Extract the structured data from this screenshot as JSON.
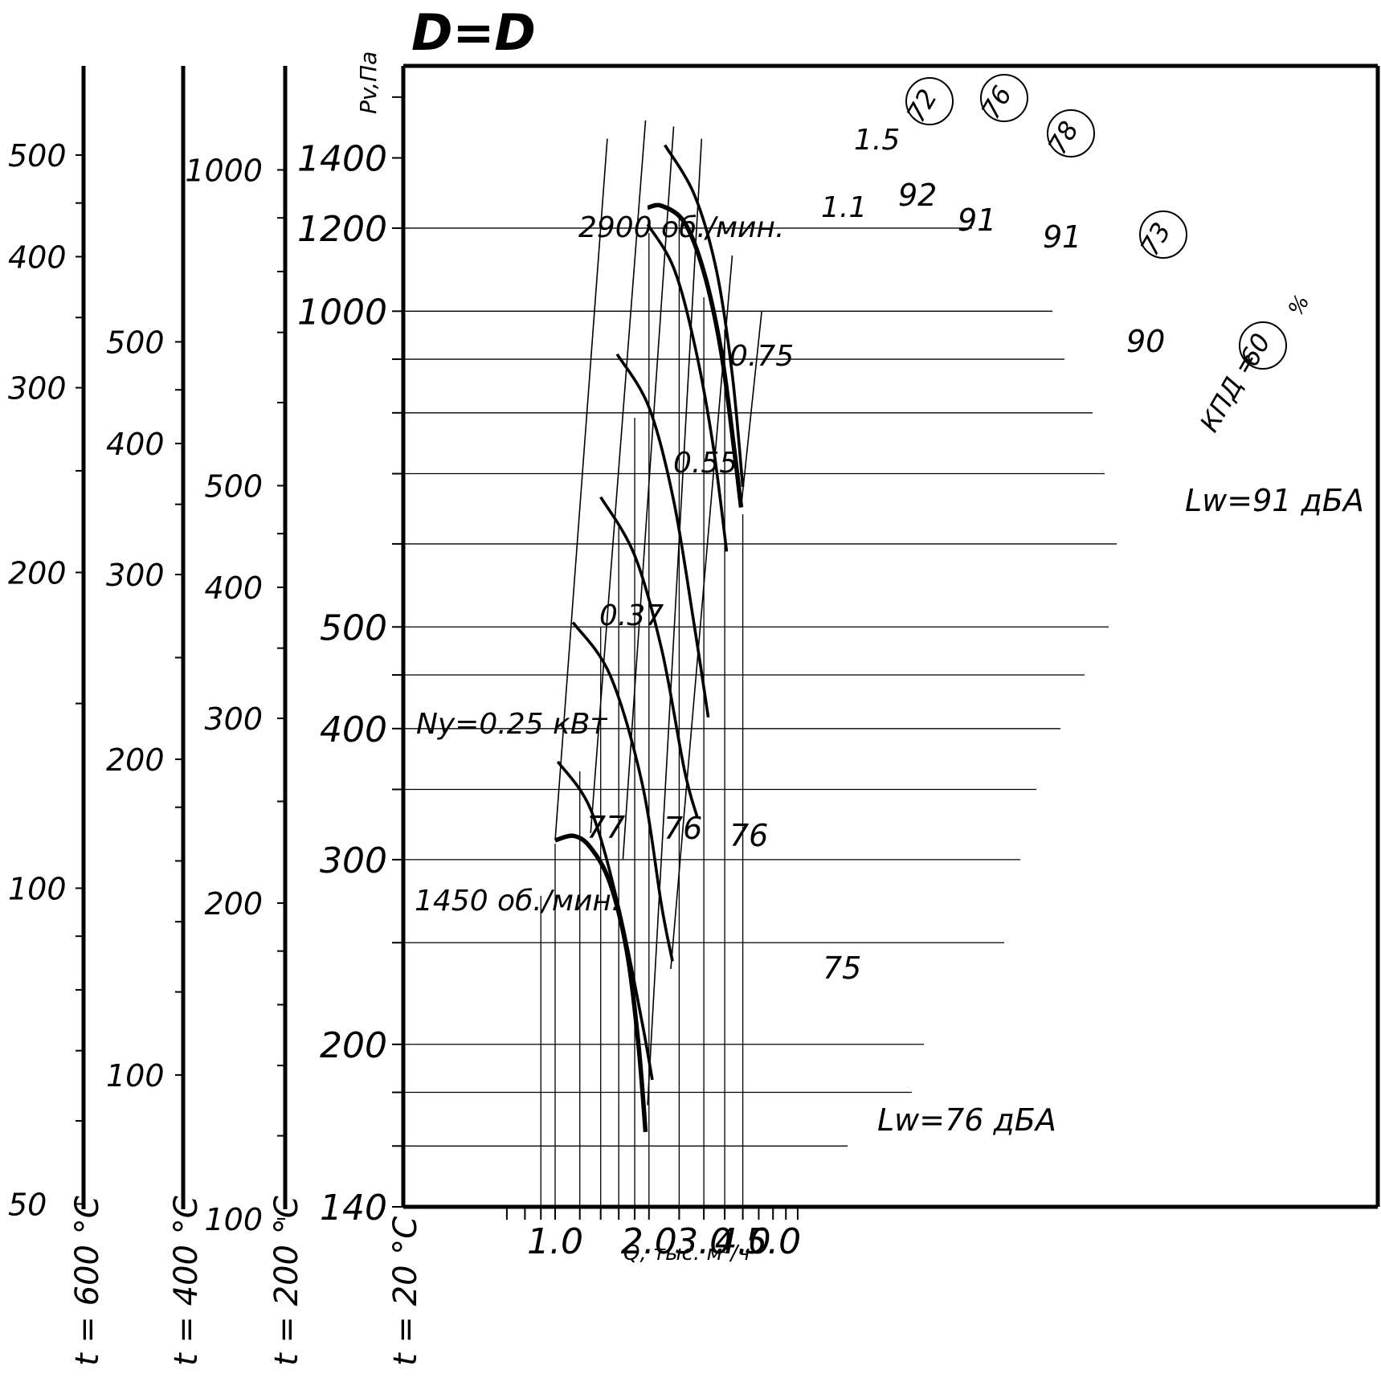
{
  "title": "D=D",
  "chart_data": {
    "type": "line",
    "x_scale": "log",
    "y_scale": "log",
    "xlabel": "Q, тыс. м³/ч",
    "ylabel": "Pv,Па",
    "xlim": [
      0.6,
      6.2
    ],
    "ylim": [
      140,
      1700
    ],
    "x_ticks": [
      "1.0",
      "2.0",
      "3.0",
      "4.0",
      "5.0"
    ],
    "y_ticks": [
      "140",
      "200",
      "300",
      "400",
      "500",
      "1000",
      "1200",
      "1400"
    ],
    "temperature_scales": [
      {
        "label": "t = 600 °C",
        "ticks": [
          "50",
          "100",
          "200",
          "300",
          "400",
          "500"
        ]
      },
      {
        "label": "t = 400 °C",
        "ticks": [
          "100",
          "200",
          "300",
          "400",
          "500"
        ]
      },
      {
        "label": "t = 200 °C",
        "ticks": [
          "100",
          "200",
          "300",
          "400",
          "500",
          "1000"
        ]
      },
      {
        "label": "t = 20 °C"
      }
    ],
    "series": [
      {
        "name": "2900 об./мин.",
        "Lw_label": "Lw=91 дБА",
        "x": [
          1.98,
          2.2,
          2.6,
          3.0,
          3.4,
          3.75,
          3.95
        ],
        "y": [
          1255,
          1260,
          1215,
          1090,
          920,
          740,
          650
        ]
      },
      {
        "name": "1450 об./мин.",
        "Lw_label": "Lw=76 дБА",
        "x": [
          1.0,
          1.15,
          1.3,
          1.5,
          1.7,
          1.85,
          1.95
        ],
        "y": [
          313,
          316,
          308,
          285,
          245,
          200,
          165
        ]
      }
    ],
    "power_lines": [
      {
        "label": "1.5",
        "x": [
          2.25,
          2.8,
          3.3,
          3.7,
          4.0
        ],
        "y": [
          1440,
          1290,
          1090,
          870,
          680
        ]
      },
      {
        "label": "1.1",
        "x": [
          1.98,
          2.4,
          2.8,
          3.2,
          3.55
        ],
        "y": [
          1210,
          1100,
          930,
          750,
          590
        ]
      },
      {
        "label": "0.75",
        "x": [
          1.58,
          2.0,
          2.4,
          2.8,
          3.1
        ],
        "y": [
          910,
          810,
          660,
          500,
          410
        ]
      },
      {
        "label": "0.55",
        "x": [
          1.4,
          1.8,
          2.2,
          2.6,
          2.85
        ],
        "y": [
          665,
          585,
          475,
          365,
          330
        ]
      },
      {
        "label": "0.37",
        "x": [
          1.14,
          1.5,
          1.9,
          2.2,
          2.38
        ],
        "y": [
          505,
          450,
          355,
          270,
          240
        ]
      },
      {
        "label": "Ny=0.25 кВт",
        "x": [
          1.02,
          1.3,
          1.6,
          1.9,
          2.05
        ],
        "y": [
          372,
          335,
          270,
          210,
          185
        ]
      }
    ],
    "sound_labels": {
      "2900": [
        "92",
        "91",
        "91",
        "90"
      ],
      "1450": [
        "77",
        "76",
        "76",
        "75"
      ]
    },
    "efficiency_labels": [
      "72",
      "76",
      "78",
      "73",
      "60"
    ],
    "efficiency_prefix": "КПД =",
    "efficiency_suffix": "%"
  }
}
